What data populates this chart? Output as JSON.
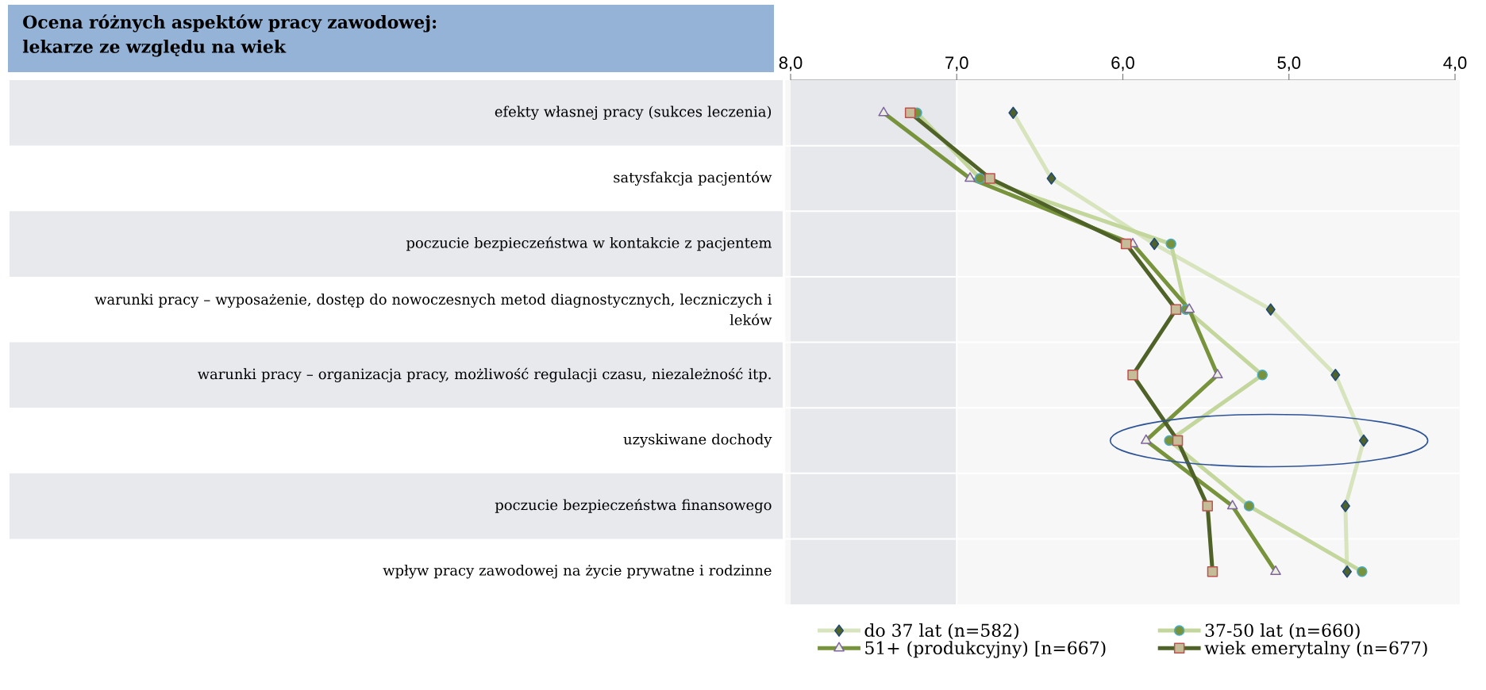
{
  "chart_data": {
    "type": "line",
    "title": "Ocena różnych aspektów pracy zawodowej: lekarze ze względu na wiek",
    "orientation": "horizontal",
    "categories": [
      "efekty własnej pracy (sukces leczenia)",
      "satysfakcja pacjentów",
      "poczucie bezpieczeństwa w kontakcie z pacjentem",
      "warunki pracy – wyposażenie, dostęp do nowoczesnych metod diagnostycznych, leczniczych i leków",
      "warunki pracy – organizacja pracy, możliwość regulacji czasu, niezależność itp.",
      "uzyskiwane dochody",
      "poczucie bezpieczeństwa finansowego",
      "wpływ pracy zawodowej na życie prywatne i rodzinne"
    ],
    "xlim": [
      8,
      4
    ],
    "xticks": [
      {
        "value": 8,
        "label": "8,0"
      },
      {
        "value": 7,
        "label": "7,0"
      },
      {
        "value": 6,
        "label": "6,0"
      },
      {
        "value": 5,
        "label": "5,0"
      },
      {
        "value": 4,
        "label": "4,0"
      }
    ],
    "bands": [
      {
        "axis": "x",
        "from": 8,
        "to": 7,
        "color": "#e6e8ec"
      }
    ],
    "legend": "bottom",
    "series": [
      {
        "name": "do 37 lat (n=582)",
        "color": "#d7e4bd",
        "marker": "diamond",
        "values": [
          6.66,
          6.43,
          5.81,
          5.11,
          4.72,
          4.55,
          4.66,
          4.65
        ]
      },
      {
        "name": "37-50 lat (n=660)",
        "color": "#c3d69b",
        "marker": "circle",
        "values": [
          7.24,
          6.86,
          5.71,
          5.62,
          5.16,
          5.72,
          5.24,
          4.56
        ]
      },
      {
        "name": "51+ (produkcyjny) [n=667)",
        "color": "#77933c",
        "marker": "triangle",
        "values": [
          7.44,
          6.92,
          5.94,
          5.6,
          5.43,
          5.86,
          5.34,
          5.08
        ]
      },
      {
        "name": "wiek emerytalny (n=677)",
        "color": "#4f6228",
        "marker": "square",
        "values": [
          7.28,
          6.8,
          5.98,
          5.68,
          5.94,
          5.67,
          5.49,
          5.46
        ]
      }
    ]
  }
}
